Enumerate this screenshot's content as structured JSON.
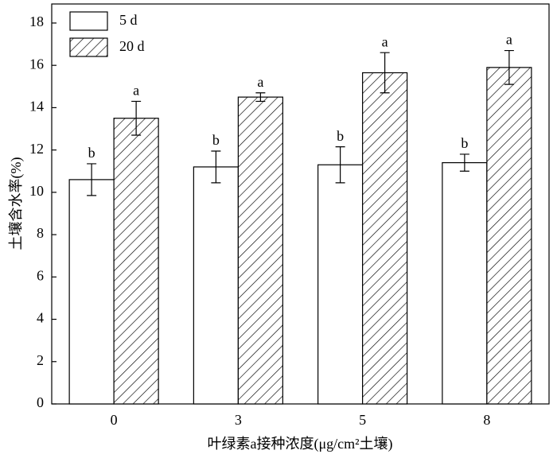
{
  "chart_data": {
    "type": "bar",
    "x_label": "叶绿素a接种浓度(μg/cm²土壤)",
    "y_label": "土壤含水率(%)",
    "categories": [
      "0",
      "3",
      "5",
      "8"
    ],
    "series": [
      {
        "name": "5 d",
        "color": "#ffffff",
        "hatch": false,
        "values": [
          10.6,
          11.2,
          11.3,
          11.4
        ],
        "errors": [
          0.75,
          0.75,
          0.85,
          0.4
        ],
        "letters": [
          "b",
          "b",
          "b",
          "b"
        ]
      },
      {
        "name": "20 d",
        "color": "#ffffff",
        "hatch": true,
        "values": [
          13.5,
          14.5,
          15.65,
          15.9
        ],
        "errors": [
          0.8,
          0.2,
          0.95,
          0.8
        ],
        "letters": [
          "a",
          "a",
          "a",
          "a"
        ]
      }
    ],
    "ylim": [
      0,
      18.9
    ],
    "yticks": [
      0,
      2,
      4,
      6,
      8,
      10,
      12,
      14,
      16,
      18
    ],
    "grid": false,
    "legend": "upper left"
  }
}
